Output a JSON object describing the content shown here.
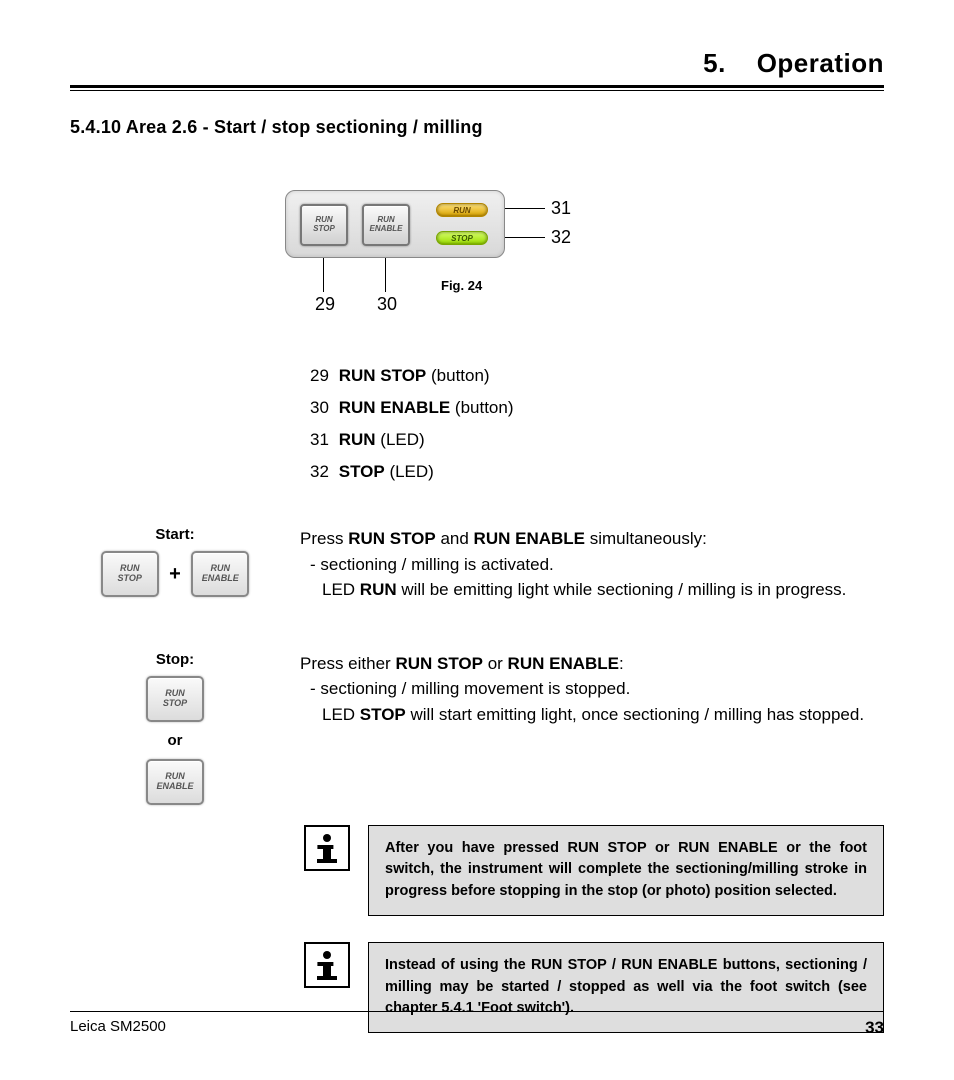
{
  "header": {
    "chapter_no": "5.",
    "chapter_title": "Operation"
  },
  "section": {
    "title": "5.4.10 Area 2.6 - Start / stop sectioning / milling"
  },
  "figure": {
    "btn29": "RUN STOP",
    "btn30": "RUN ENABLE",
    "led31": "RUN",
    "led32": "STOP",
    "num29": "29",
    "num30": "30",
    "num31": "31",
    "num32": "32",
    "caption": "Fig. 24"
  },
  "legend": [
    {
      "n": "29",
      "term": "RUN STOP",
      "desc": " (button)"
    },
    {
      "n": "30",
      "term": "RUN ENABLE",
      "desc": " (button)"
    },
    {
      "n": "31",
      "term": "RUN",
      "desc": " (LED)"
    },
    {
      "n": "32",
      "term": "STOP",
      "desc": " (LED)"
    }
  ],
  "start": {
    "label": "Start:",
    "btn1": "RUN STOP",
    "plus": "+",
    "btn2": "RUN ENABLE",
    "line1_a": "Press ",
    "line1_b": "RUN STOP",
    "line1_c": " and ",
    "line1_d": "RUN ENABLE",
    "line1_e": " simultaneously:",
    "bullet": "-   sectioning / milling is activated.",
    "line2_a": "LED ",
    "line2_b": "RUN",
    "line2_c": " will be emitting light while sectioning / milling is in progress."
  },
  "stop": {
    "label": "Stop:",
    "btn1": "RUN STOP",
    "or": "or",
    "btn2": "RUN ENABLE",
    "line1_a": "Press either ",
    "line1_b": "RUN STOP",
    "line1_c": " or ",
    "line1_d": "RUN ENABLE",
    "line1_e": ":",
    "bullet": "-   sectioning / milling movement is stopped.",
    "line2_a": "LED ",
    "line2_b": "STOP",
    "line2_c": " will start emitting light, once sectioning / milling has stopped."
  },
  "notes": {
    "n1": "After you have pressed RUN STOP or RUN ENABLE or the foot switch, the instrument will complete the sectioning/milling stroke in progress before stopping in the stop (or photo) position selected.",
    "n2": "Instead of using the RUN STOP / RUN ENABLE buttons, sectioning / milling may be started / stopped as well via the foot switch (see chapter 5.4.1 'Foot switch')."
  },
  "footer": {
    "product": "Leica SM2500",
    "page": "33"
  }
}
